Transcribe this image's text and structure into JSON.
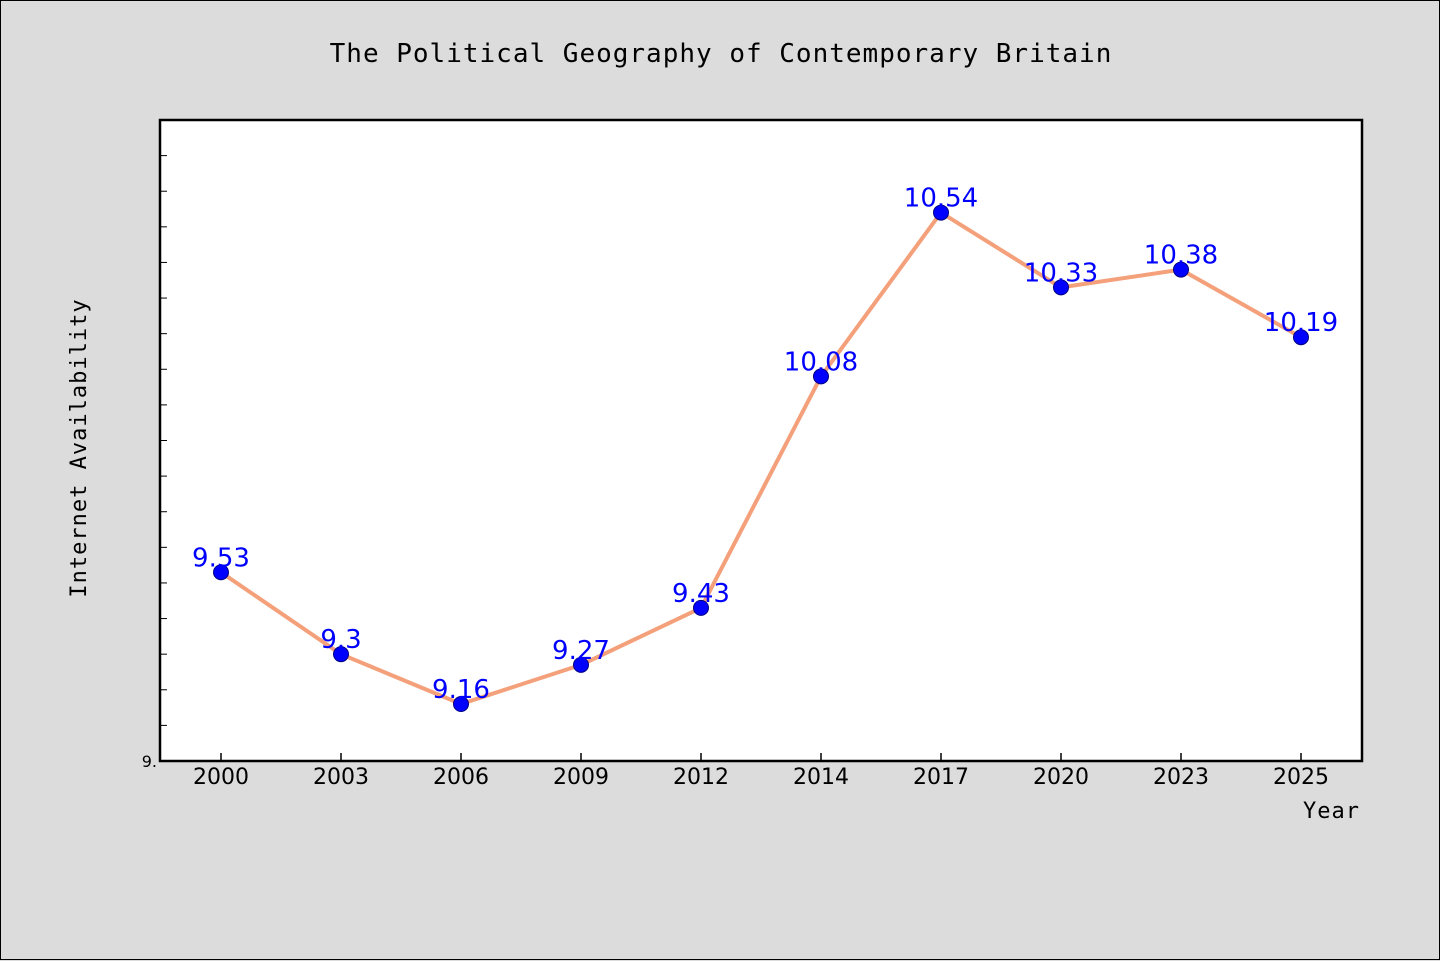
{
  "chart_data": {
    "type": "line",
    "title": "The Political Geography of Contemporary Britain",
    "xlabel": "Year",
    "ylabel": "Internet Availability",
    "categories": [
      "2000",
      "2003",
      "2006",
      "2009",
      "2012",
      "2014",
      "2017",
      "2020",
      "2023",
      "2025"
    ],
    "series": [
      {
        "values": [
          9.53,
          9.3,
          9.16,
          9.27,
          9.43,
          10.08,
          10.54,
          10.33,
          10.38,
          10.19
        ]
      }
    ],
    "ylim": [
      9.0,
      10.8
    ],
    "y_tick_labels": [
      {
        "value": 9.0,
        "label": "9."
      }
    ],
    "data_labels_shown": true,
    "grid": false,
    "legend": "none",
    "colors": {
      "line": "#f4a07a",
      "marker": "#0000ff",
      "marker_edge": "#000080",
      "data_label": "#0000ff",
      "plot_background": "#ffffff",
      "figure_background": "#dcdcdc"
    }
  }
}
